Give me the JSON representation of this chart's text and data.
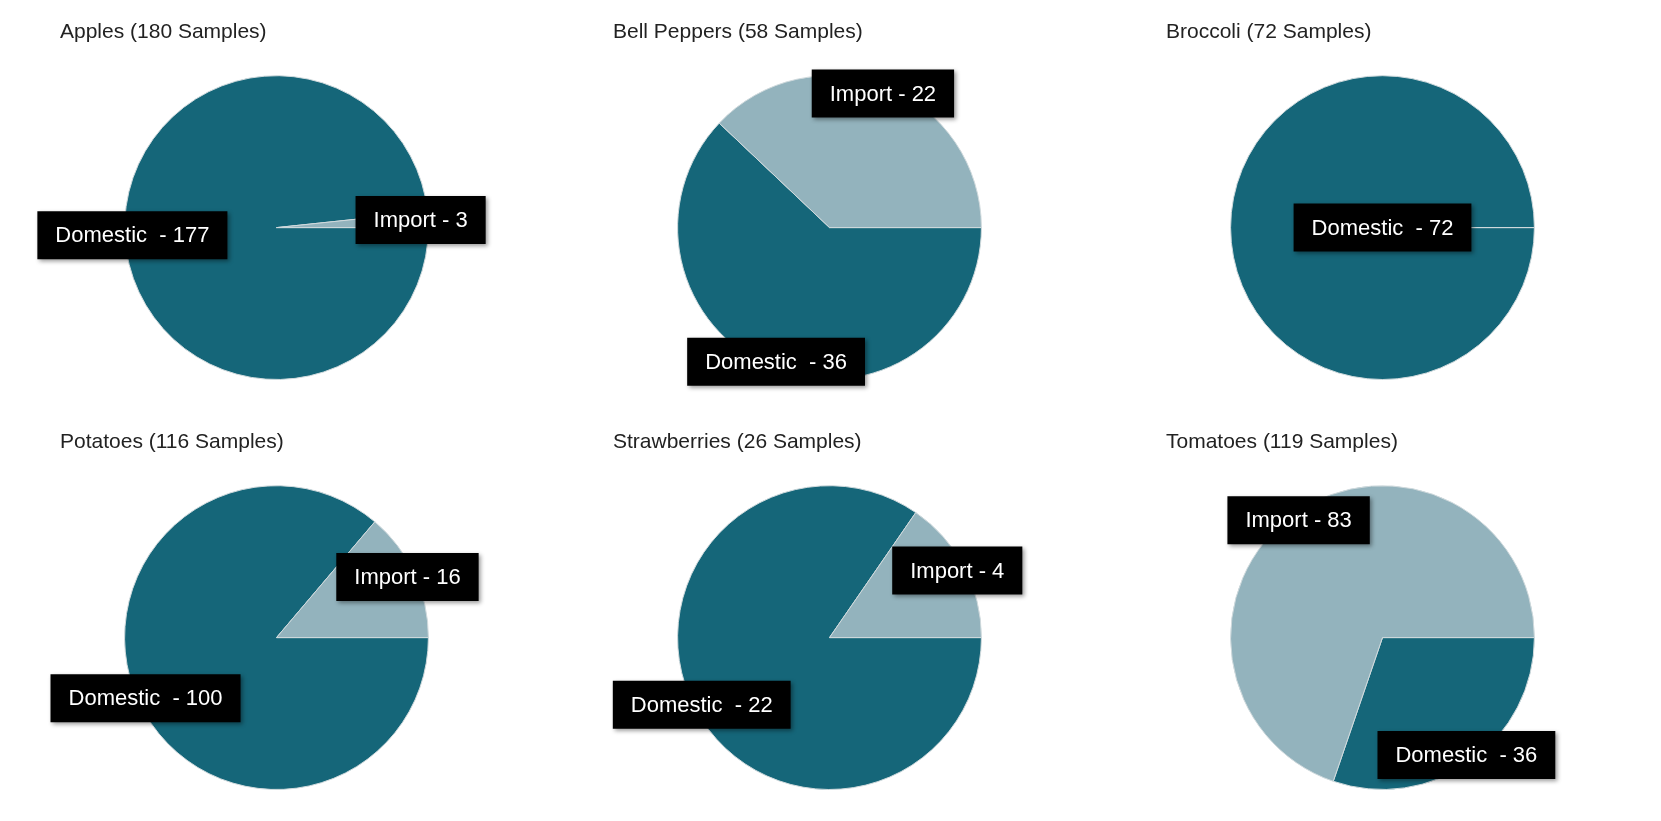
{
  "chart_data": [
    {
      "type": "pie",
      "title": "Apples (180 Samples)",
      "categories": [
        "Domestic  -",
        "Import -"
      ],
      "values": [
        177,
        3
      ],
      "colors": [
        "#156679",
        "#93b3bd"
      ],
      "data_labels": true
    },
    {
      "type": "pie",
      "title": "Bell Peppers (58 Samples)",
      "categories": [
        "Domestic  -",
        "Import -"
      ],
      "values": [
        36,
        22
      ],
      "colors": [
        "#156679",
        "#93b3bd"
      ],
      "data_labels": true
    },
    {
      "type": "pie",
      "title": "Broccoli (72 Samples)",
      "categories": [
        "Domestic  -"
      ],
      "values": [
        72
      ],
      "colors": [
        "#156679"
      ],
      "data_labels": true
    },
    {
      "type": "pie",
      "title": "Potatoes (116 Samples)",
      "categories": [
        "Domestic  -",
        "Import -"
      ],
      "values": [
        100,
        16
      ],
      "colors": [
        "#156679",
        "#93b3bd"
      ],
      "data_labels": true
    },
    {
      "type": "pie",
      "title": "Strawberries (26 Samples)",
      "categories": [
        "Domestic  -",
        "Import -"
      ],
      "values": [
        22,
        4
      ],
      "colors": [
        "#156679",
        "#93b3bd"
      ],
      "data_labels": true
    },
    {
      "type": "pie",
      "title": "Tomatoes (119 Samples)",
      "categories": [
        "Domestic  -",
        "Import -"
      ],
      "values": [
        36,
        83
      ],
      "colors": [
        "#156679",
        "#93b3bd"
      ],
      "data_labels": true
    }
  ]
}
